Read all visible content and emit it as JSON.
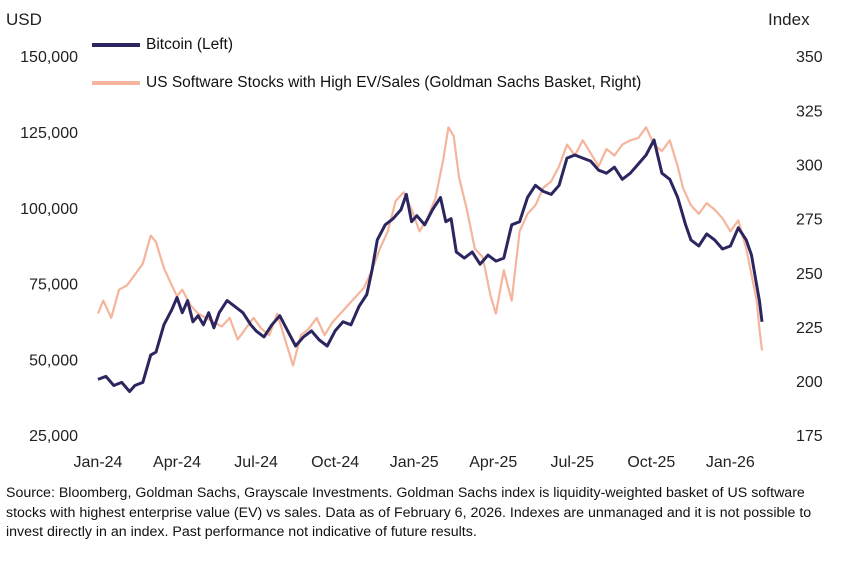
{
  "chart_data": {
    "type": "line",
    "left_axis_unit": "USD",
    "right_axis_unit": "Index",
    "left_ticks": [
      "150,000",
      "125,000",
      "100,000",
      "75,000",
      "50,000",
      "25,000"
    ],
    "left_tick_values": [
      150000,
      125000,
      100000,
      75000,
      50000,
      25000
    ],
    "right_ticks": [
      "350",
      "325",
      "300",
      "275",
      "250",
      "225",
      "200",
      "175"
    ],
    "right_tick_values": [
      350,
      325,
      300,
      275,
      250,
      225,
      200,
      175
    ],
    "x_ticks": [
      "Jan-24",
      "Apr-24",
      "Jul-24",
      "Oct-24",
      "Jan-25",
      "Apr-25",
      "Jul-25",
      "Oct-25",
      "Jan-26"
    ],
    "x_tick_months": [
      0,
      3,
      6,
      9,
      12,
      15,
      18,
      21,
      24
    ],
    "left_ylim": [
      25000,
      150000
    ],
    "right_ylim": [
      175,
      350
    ],
    "xlim_months": [
      0,
      25.2
    ],
    "grid": false,
    "legend_position": "top-left",
    "series": [
      {
        "name": "Bitcoin (Left)",
        "axis": "left",
        "color": "#2b2660",
        "points": [
          [
            0.0,
            44000
          ],
          [
            0.3,
            45000
          ],
          [
            0.6,
            42000
          ],
          [
            0.9,
            43000
          ],
          [
            1.2,
            40000
          ],
          [
            1.4,
            42000
          ],
          [
            1.7,
            43000
          ],
          [
            2.0,
            52000
          ],
          [
            2.2,
            53000
          ],
          [
            2.5,
            62000
          ],
          [
            2.8,
            67000
          ],
          [
            3.0,
            71000
          ],
          [
            3.2,
            66000
          ],
          [
            3.4,
            70000
          ],
          [
            3.6,
            63000
          ],
          [
            3.8,
            65000
          ],
          [
            4.0,
            62000
          ],
          [
            4.2,
            66000
          ],
          [
            4.4,
            61000
          ],
          [
            4.6,
            66000
          ],
          [
            4.9,
            70000
          ],
          [
            5.2,
            68000
          ],
          [
            5.5,
            66000
          ],
          [
            5.8,
            62000
          ],
          [
            6.0,
            60000
          ],
          [
            6.3,
            58000
          ],
          [
            6.6,
            62000
          ],
          [
            6.9,
            65000
          ],
          [
            7.2,
            60000
          ],
          [
            7.5,
            55000
          ],
          [
            7.8,
            58000
          ],
          [
            8.1,
            60000
          ],
          [
            8.4,
            57000
          ],
          [
            8.7,
            55000
          ],
          [
            9.0,
            60000
          ],
          [
            9.3,
            63000
          ],
          [
            9.6,
            62000
          ],
          [
            9.9,
            68000
          ],
          [
            10.2,
            72000
          ],
          [
            10.4,
            80000
          ],
          [
            10.6,
            90000
          ],
          [
            10.9,
            95000
          ],
          [
            11.2,
            97000
          ],
          [
            11.5,
            100000
          ],
          [
            11.7,
            105000
          ],
          [
            11.9,
            96000
          ],
          [
            12.1,
            98000
          ],
          [
            12.4,
            95000
          ],
          [
            12.7,
            100000
          ],
          [
            13.0,
            104000
          ],
          [
            13.2,
            96000
          ],
          [
            13.4,
            97000
          ],
          [
            13.6,
            86000
          ],
          [
            13.9,
            84000
          ],
          [
            14.2,
            86000
          ],
          [
            14.5,
            82000
          ],
          [
            14.8,
            85000
          ],
          [
            15.1,
            83000
          ],
          [
            15.4,
            84000
          ],
          [
            15.7,
            95000
          ],
          [
            16.0,
            96000
          ],
          [
            16.3,
            104000
          ],
          [
            16.6,
            108000
          ],
          [
            16.9,
            106000
          ],
          [
            17.2,
            105000
          ],
          [
            17.5,
            108000
          ],
          [
            17.8,
            117000
          ],
          [
            18.1,
            118000
          ],
          [
            18.4,
            117000
          ],
          [
            18.7,
            116000
          ],
          [
            19.0,
            113000
          ],
          [
            19.3,
            112000
          ],
          [
            19.6,
            114000
          ],
          [
            19.9,
            110000
          ],
          [
            20.2,
            112000
          ],
          [
            20.5,
            115000
          ],
          [
            20.8,
            118000
          ],
          [
            21.1,
            123000
          ],
          [
            21.4,
            112000
          ],
          [
            21.7,
            110000
          ],
          [
            22.0,
            104000
          ],
          [
            22.3,
            95000
          ],
          [
            22.5,
            90000
          ],
          [
            22.8,
            88000
          ],
          [
            23.1,
            92000
          ],
          [
            23.4,
            90000
          ],
          [
            23.7,
            87000
          ],
          [
            24.0,
            88000
          ],
          [
            24.3,
            94000
          ],
          [
            24.6,
            90000
          ],
          [
            24.8,
            85000
          ],
          [
            25.0,
            75000
          ],
          [
            25.1,
            70000
          ],
          [
            25.2,
            63000
          ]
        ]
      },
      {
        "name": "US Software Stocks with High EV/Sales (Goldman Sachs Basket, Right)",
        "axis": "right",
        "color": "#f5b59c",
        "points": [
          [
            0.0,
            232
          ],
          [
            0.2,
            238
          ],
          [
            0.5,
            230
          ],
          [
            0.8,
            243
          ],
          [
            1.1,
            245
          ],
          [
            1.4,
            250
          ],
          [
            1.7,
            255
          ],
          [
            2.0,
            268
          ],
          [
            2.2,
            265
          ],
          [
            2.5,
            253
          ],
          [
            2.8,
            245
          ],
          [
            3.0,
            240
          ],
          [
            3.2,
            243
          ],
          [
            3.5,
            236
          ],
          [
            3.8,
            232
          ],
          [
            4.1,
            230
          ],
          [
            4.4,
            228
          ],
          [
            4.7,
            226
          ],
          [
            5.0,
            230
          ],
          [
            5.3,
            220
          ],
          [
            5.6,
            225
          ],
          [
            5.9,
            230
          ],
          [
            6.2,
            225
          ],
          [
            6.5,
            222
          ],
          [
            6.8,
            232
          ],
          [
            7.1,
            220
          ],
          [
            7.4,
            208
          ],
          [
            7.7,
            222
          ],
          [
            8.0,
            225
          ],
          [
            8.3,
            230
          ],
          [
            8.6,
            222
          ],
          [
            8.9,
            228
          ],
          [
            9.2,
            232
          ],
          [
            9.5,
            236
          ],
          [
            9.8,
            240
          ],
          [
            10.1,
            244
          ],
          [
            10.4,
            252
          ],
          [
            10.7,
            262
          ],
          [
            11.0,
            270
          ],
          [
            11.3,
            284
          ],
          [
            11.6,
            288
          ],
          [
            11.9,
            280
          ],
          [
            12.2,
            270
          ],
          [
            12.5,
            276
          ],
          [
            12.8,
            285
          ],
          [
            13.1,
            303
          ],
          [
            13.3,
            318
          ],
          [
            13.5,
            314
          ],
          [
            13.7,
            295
          ],
          [
            14.0,
            280
          ],
          [
            14.3,
            262
          ],
          [
            14.6,
            258
          ],
          [
            14.9,
            240
          ],
          [
            15.1,
            232
          ],
          [
            15.4,
            252
          ],
          [
            15.7,
            238
          ],
          [
            16.0,
            270
          ],
          [
            16.3,
            278
          ],
          [
            16.6,
            282
          ],
          [
            16.9,
            290
          ],
          [
            17.2,
            293
          ],
          [
            17.5,
            300
          ],
          [
            17.8,
            310
          ],
          [
            18.1,
            305
          ],
          [
            18.4,
            312
          ],
          [
            18.7,
            306
          ],
          [
            19.0,
            300
          ],
          [
            19.3,
            308
          ],
          [
            19.6,
            305
          ],
          [
            19.9,
            310
          ],
          [
            20.2,
            312
          ],
          [
            20.5,
            313
          ],
          [
            20.8,
            318
          ],
          [
            21.1,
            310
          ],
          [
            21.4,
            307
          ],
          [
            21.7,
            312
          ],
          [
            22.0,
            300
          ],
          [
            22.2,
            290
          ],
          [
            22.5,
            282
          ],
          [
            22.8,
            278
          ],
          [
            23.1,
            283
          ],
          [
            23.4,
            280
          ],
          [
            23.7,
            276
          ],
          [
            24.0,
            270
          ],
          [
            24.3,
            275
          ],
          [
            24.6,
            262
          ],
          [
            24.8,
            250
          ],
          [
            25.0,
            238
          ],
          [
            25.1,
            225
          ],
          [
            25.2,
            215
          ]
        ]
      }
    ]
  },
  "legend": {
    "bitcoin_label": "Bitcoin (Left)",
    "software_label": "US Software Stocks with High EV/Sales (Goldman Sachs Basket, Right)"
  },
  "source_note": "Source: Bloomberg, Goldman Sachs, Grayscale Investments. Goldman Sachs index is liquidity-weighted basket of US software stocks with highest enterprise value (EV) vs sales. Data as of February 6, 2026. Indexes are unmanaged and it is not possible to invest directly in an index. Past performance not indicative of future results.",
  "colors": {
    "bitcoin": "#2b2660",
    "software": "#f5b59c"
  }
}
